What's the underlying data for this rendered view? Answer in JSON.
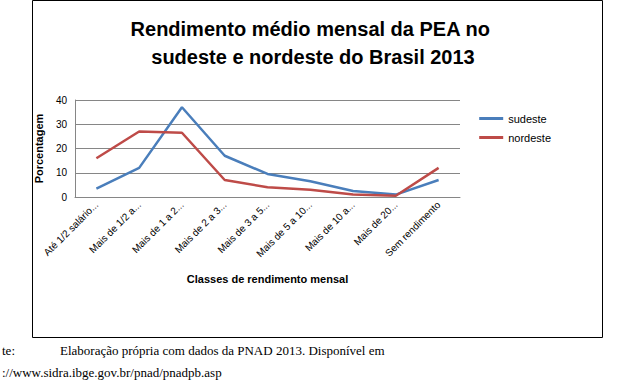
{
  "chart_data": {
    "type": "line",
    "title": "Rendimento médio mensal da PEA no sudeste e nordeste do Brasil 2013",
    "x_label": "Classes de rendimento mensal",
    "y_label": "Porcentagem",
    "categories": [
      "Até 1/2 salário...",
      "Mais de 1/2 a...",
      "Mais de 1 a 2...",
      "Mais de 2 a 3...",
      "Mais de 3 a 5...",
      "Mais de 5 a 10...",
      "Mais de 10 a...",
      "Mais de 20...",
      "Sem rendimento"
    ],
    "series": [
      {
        "name": "sudeste",
        "color": "#4a7ebb",
        "values": [
          3.5,
          12,
          37,
          17,
          9.5,
          6.5,
          2.5,
          1,
          7
        ]
      },
      {
        "name": "nordeste",
        "color": "#be4b48",
        "values": [
          16,
          27,
          26.5,
          7,
          4,
          3,
          1,
          0.5,
          12
        ]
      }
    ],
    "ylim": [
      0,
      40
    ],
    "yticks": [
      0,
      10,
      20,
      30,
      40
    ],
    "grid": true,
    "legend": "right",
    "annotations": [
      "te:",
      "Elaboração própria com dados da PNAD 2013. Disponível em",
      "://www.sidra.ibge.gov.br/pnad/pnadpb.asp"
    ]
  }
}
